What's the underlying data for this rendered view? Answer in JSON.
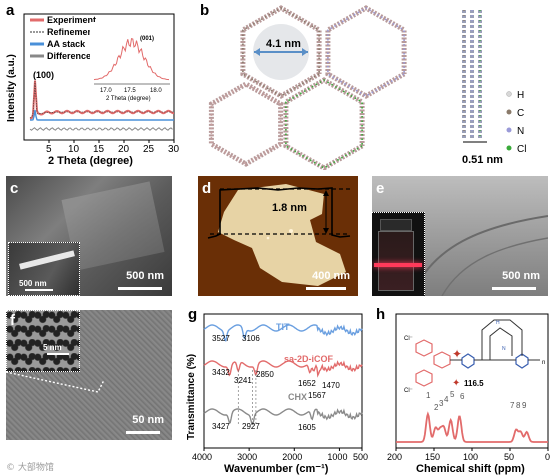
{
  "panels": {
    "a": {
      "label": "a"
    },
    "b": {
      "label": "b"
    },
    "c": {
      "label": "c"
    },
    "d": {
      "label": "d"
    },
    "e": {
      "label": "e"
    },
    "f": {
      "label": "f"
    },
    "g": {
      "label": "g"
    },
    "h": {
      "label": "h"
    }
  },
  "chart_data": [
    {
      "type": "line",
      "panel": "a",
      "xlabel": "2 Theta (degree)",
      "ylabel": "Intensity (a.u.)",
      "xlim": [
        0,
        30
      ],
      "xticks": [
        "5",
        "10",
        "15",
        "20",
        "25",
        "30"
      ],
      "series": [
        {
          "name": "Experiment",
          "color": "#e26b6b"
        },
        {
          "name": "Refinement",
          "color": "#333333"
        },
        {
          "name": "AA stack",
          "color": "#4a90d9"
        },
        {
          "name": "Difference",
          "color": "#888888"
        }
      ],
      "annotations": [
        "(100)"
      ],
      "inset": {
        "xlabel": "2 Theta (degree)",
        "xticks": [
          "17.0",
          "17.5",
          "18.0"
        ],
        "annotation": "(001)"
      }
    },
    {
      "type": "line",
      "panel": "g",
      "xlabel": "Wavenumber (cm⁻¹)",
      "ylabel": "Transmittance (%)",
      "xlim": [
        4000,
        500
      ],
      "xticks": [
        "4000",
        "3000",
        "2000",
        "1000",
        "500"
      ],
      "series": [
        {
          "name": "TIT",
          "color": "#6a9fe0",
          "peaks": [
            3527,
            3106
          ]
        },
        {
          "name": "sa-2D-iCOF",
          "color": "#e26b6b",
          "peaks": [
            3432,
            3241,
            2850,
            1652,
            1567,
            1470
          ]
        },
        {
          "name": "CHX",
          "color": "#8a8a8a",
          "peaks": [
            3427,
            2927,
            1605
          ]
        }
      ],
      "labels": {
        "tit": [
          "3527",
          "3106"
        ],
        "icof": [
          "3432",
          "3241",
          "2850",
          "1652",
          "1470",
          "1567"
        ],
        "chx": [
          "3427",
          "2927",
          "1605"
        ]
      }
    },
    {
      "type": "line",
      "panel": "h",
      "xlabel": "Chemical shift (ppm)",
      "xlim": [
        200,
        0
      ],
      "xticks": [
        "200",
        "150",
        "100",
        "50",
        "0"
      ],
      "series": [
        {
          "name": "",
          "color": "#e26b6b"
        }
      ],
      "peak_labels": [
        "1",
        "2",
        "3",
        "4",
        "5",
        "6",
        "7",
        "8",
        "9"
      ],
      "star_label": "116.5",
      "chem_labels": {
        "cl": "Cl⁻",
        "n": "n",
        "h": "H",
        "n_atom": "N"
      }
    }
  ],
  "structure": {
    "pore_size": "4.1 nm",
    "interlayer": "0.51 nm",
    "legend": [
      {
        "label": "H",
        "color": "#d8d8d8"
      },
      {
        "label": "C",
        "color": "#8a7a6a"
      },
      {
        "label": "N",
        "color": "#9a9ad8"
      },
      {
        "label": "Cl",
        "color": "#3aaa3a"
      }
    ]
  },
  "micrographs": {
    "c": {
      "scale": "500 nm",
      "inset_scale": "500 nm"
    },
    "d": {
      "height": "1.8 nm",
      "scale": "400 nm"
    },
    "e": {
      "scale": "500 nm"
    },
    "f": {
      "scale": "50 nm",
      "inset_scale": "5 nm"
    }
  },
  "watermark": "© 大部物馆"
}
